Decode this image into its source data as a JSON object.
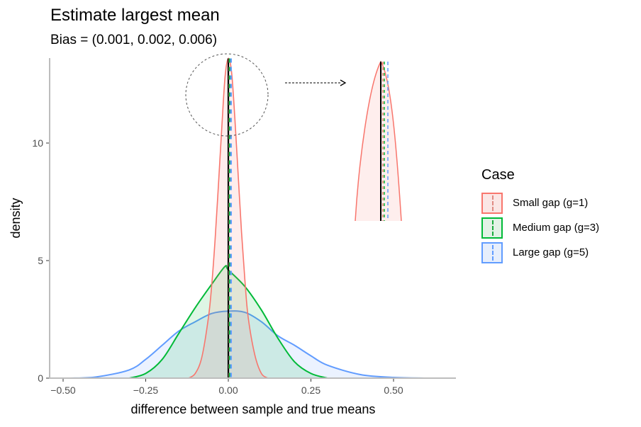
{
  "header": {
    "title": "Estimate largest mean",
    "subtitle": "Bias = (0.001, 0.002, 0.006)"
  },
  "axes": {
    "xlabel": "difference between sample and true means",
    "ylabel": "density",
    "x_ticks": [
      "−0.50",
      "−0.25",
      "0.00",
      "0.25",
      "0.50"
    ],
    "y_ticks": [
      "0",
      "5",
      "10"
    ]
  },
  "legend": {
    "title": "Case",
    "items": [
      {
        "label": "Small gap (g=1)",
        "color": "#F8766D"
      },
      {
        "label": "Medium gap (g=3)",
        "color": "#00BA38"
      },
      {
        "label": "Large gap (g=5)",
        "color": "#619CFF"
      }
    ]
  },
  "chart_data": {
    "type": "area",
    "title": "Estimate largest mean",
    "subtitle": "Bias = (0.001, 0.002, 0.006)",
    "xlabel": "difference between sample and true means",
    "ylabel": "density",
    "xlim": [
      -0.52,
      0.66
    ],
    "ylim": [
      0,
      13.6
    ],
    "x_ticks": [
      -0.5,
      -0.25,
      0.0,
      0.25,
      0.5
    ],
    "y_ticks": [
      0,
      5,
      10
    ],
    "grid": false,
    "legend_position": "right",
    "legend_title": "Case",
    "series": [
      {
        "name": "Small gap (g=1)",
        "color": "#F8766D",
        "mean_bias": 0.001,
        "x": [
          -0.12,
          -0.1,
          -0.08,
          -0.06,
          -0.05,
          -0.04,
          -0.03,
          -0.02,
          -0.01,
          0.0,
          0.01,
          0.02,
          0.03,
          0.04,
          0.05,
          0.06,
          0.08,
          0.1,
          0.12
        ],
        "y": [
          0.0,
          0.2,
          0.9,
          2.6,
          4.0,
          5.9,
          8.2,
          10.6,
          12.8,
          13.6,
          13.0,
          11.0,
          8.6,
          6.2,
          4.2,
          2.6,
          1.0,
          0.2,
          0.0
        ]
      },
      {
        "name": "Medium gap (g=3)",
        "color": "#00BA38",
        "mean_bias": 0.002,
        "x": [
          -0.3,
          -0.25,
          -0.2,
          -0.15,
          -0.1,
          -0.05,
          -0.01,
          0.0,
          0.05,
          0.1,
          0.15,
          0.2,
          0.25,
          0.3
        ],
        "y": [
          0.0,
          0.2,
          0.8,
          1.9,
          3.0,
          4.0,
          4.75,
          4.6,
          3.9,
          2.9,
          1.7,
          0.7,
          0.2,
          0.0
        ]
      },
      {
        "name": "Large gap (g=5)",
        "color": "#619CFF",
        "mean_bias": 0.006,
        "x": [
          -0.48,
          -0.4,
          -0.3,
          -0.25,
          -0.2,
          -0.15,
          -0.1,
          -0.05,
          0.0,
          0.05,
          0.1,
          0.15,
          0.2,
          0.25,
          0.3,
          0.4,
          0.5,
          0.6
        ],
        "y": [
          0.0,
          0.05,
          0.35,
          0.8,
          1.4,
          2.0,
          2.4,
          2.75,
          2.85,
          2.8,
          2.4,
          1.8,
          1.4,
          0.95,
          0.55,
          0.15,
          0.03,
          0.0
        ]
      }
    ],
    "annotations": [
      "solid black vertical line at x = 0 (true mean)",
      "dashed vertical lines at each series' mean bias (0.001, 0.002, 0.006)",
      "dotted circle around peak with dashed arrow to zoomed inset of the peak"
    ]
  }
}
